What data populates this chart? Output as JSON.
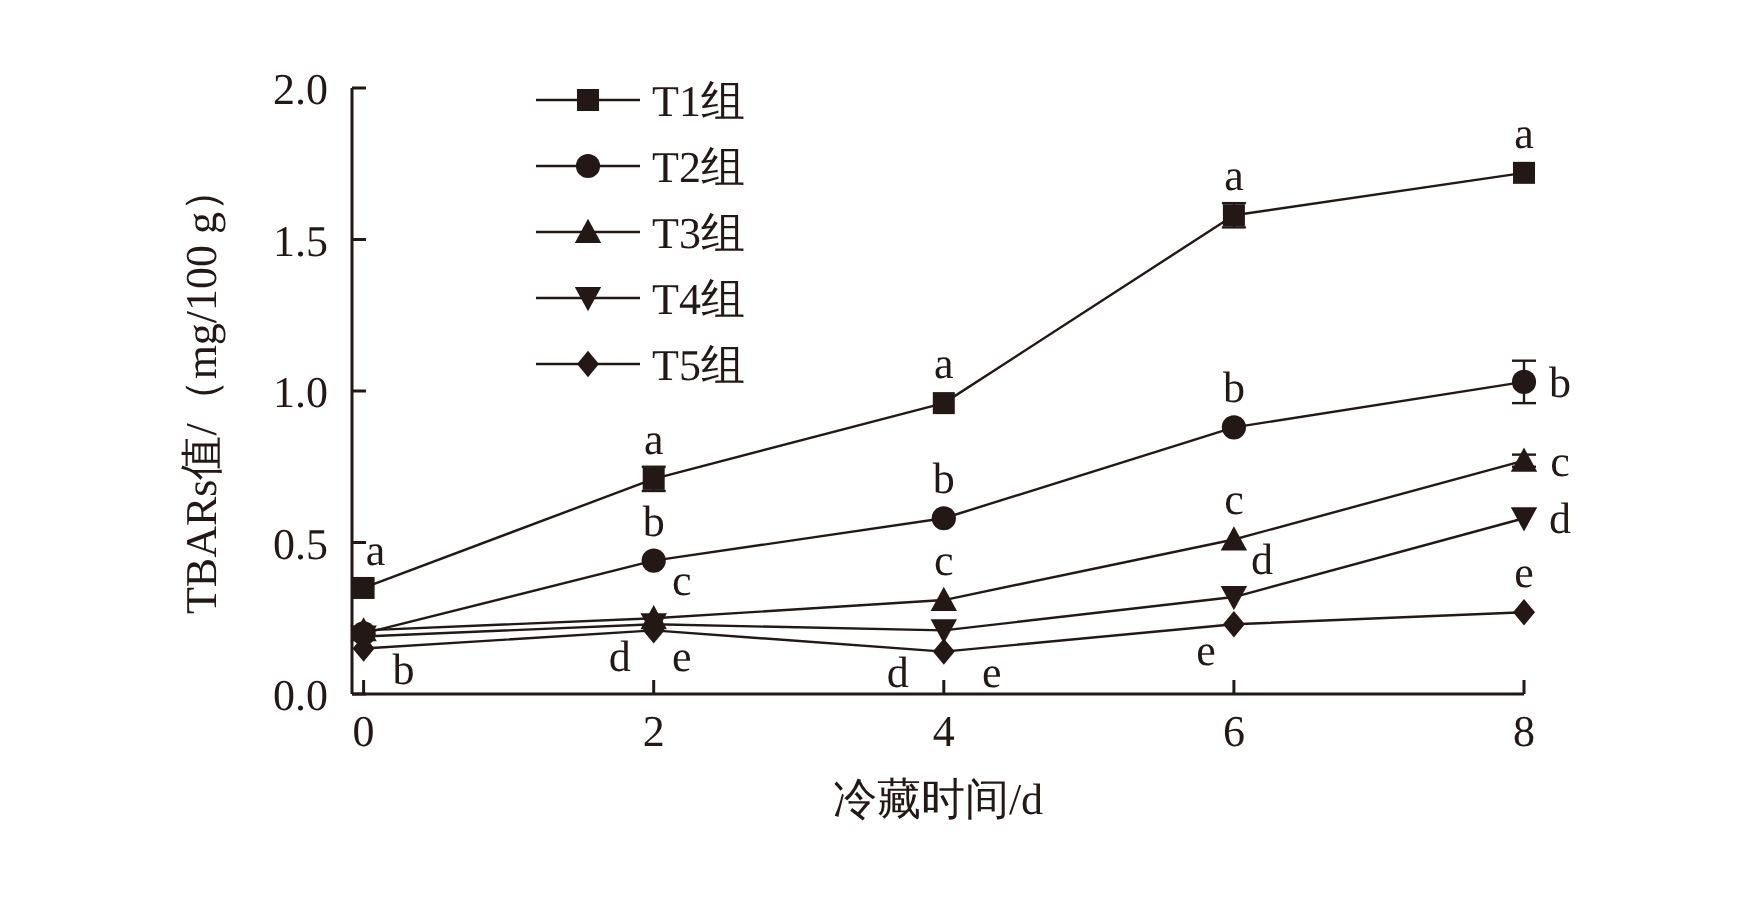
{
  "chart_data": {
    "type": "line",
    "xlabel": "冷藏时间/d",
    "ylabel": "TBARs值/（mg/100 g）",
    "x": [
      0,
      2,
      4,
      6,
      8
    ],
    "xlim": [
      -0.08,
      8
    ],
    "xticks": [
      0,
      2,
      4,
      6,
      8
    ],
    "ylim": [
      0,
      2
    ],
    "yticks": [
      {
        "value": 0,
        "label": "0.0"
      },
      {
        "value": 0.5,
        "label": "0.5"
      },
      {
        "value": 1,
        "label": "1.0"
      },
      {
        "value": 1.5,
        "label": "1.5"
      },
      {
        "value": 2,
        "label": "2.0"
      }
    ],
    "grid": false,
    "legend": "top left",
    "line_style": "solid",
    "series": [
      {
        "name": "T1组",
        "color": "#231815",
        "marker": "square",
        "values": [
          0.35,
          0.71,
          0.96,
          1.58,
          1.72
        ],
        "errors": [
          null,
          0.04,
          null,
          0.04,
          null
        ]
      },
      {
        "name": "T2组",
        "color": "#231815",
        "marker": "circle",
        "values": [
          0.2,
          0.44,
          0.58,
          0.88,
          1.03
        ],
        "errors": [
          null,
          null,
          null,
          null,
          0.07
        ]
      },
      {
        "name": "T3组",
        "color": "#231815",
        "marker": "triangle",
        "values": [
          0.21,
          0.25,
          0.31,
          0.51,
          0.77
        ],
        "errors": [
          null,
          null,
          null,
          null,
          0.02
        ]
      },
      {
        "name": "T4组",
        "color": "#231815",
        "marker": "triangle-down",
        "values": [
          0.19,
          0.23,
          0.21,
          0.32,
          0.58
        ]
      },
      {
        "name": "T5组",
        "color": "#231815",
        "marker": "diamond",
        "values": [
          0.15,
          0.21,
          0.14,
          0.23,
          0.27
        ]
      }
    ],
    "annotations": [
      {
        "text": "a",
        "x": 0,
        "y": 0.35
      },
      {
        "text": "b",
        "x": 0,
        "y": 0.2
      },
      {
        "text": "a",
        "x": 2,
        "y": 0.71
      },
      {
        "text": "b",
        "x": 2,
        "y": 0.44
      },
      {
        "text": "c",
        "x": 2,
        "y": 0.25
      },
      {
        "text": "d",
        "x": 2,
        "y": 0.23
      },
      {
        "text": "e",
        "x": 2,
        "y": 0.21
      },
      {
        "text": "a",
        "x": 4,
        "y": 0.96
      },
      {
        "text": "b",
        "x": 4,
        "y": 0.58
      },
      {
        "text": "c",
        "x": 4,
        "y": 0.31
      },
      {
        "text": "d",
        "x": 4,
        "y": 0.21
      },
      {
        "text": "e",
        "x": 4,
        "y": 0.14
      },
      {
        "text": "a",
        "x": 6,
        "y": 1.58
      },
      {
        "text": "b",
        "x": 6,
        "y": 0.88
      },
      {
        "text": "c",
        "x": 6,
        "y": 0.51
      },
      {
        "text": "d",
        "x": 6,
        "y": 0.32
      },
      {
        "text": "e",
        "x": 6,
        "y": 0.23
      },
      {
        "text": "a",
        "x": 8,
        "y": 1.72
      },
      {
        "text": "b",
        "x": 8,
        "y": 1.03
      },
      {
        "text": "c",
        "x": 8,
        "y": 0.77
      },
      {
        "text": "d",
        "x": 8,
        "y": 0.58
      },
      {
        "text": "e",
        "x": 8,
        "y": 0.27
      }
    ]
  }
}
